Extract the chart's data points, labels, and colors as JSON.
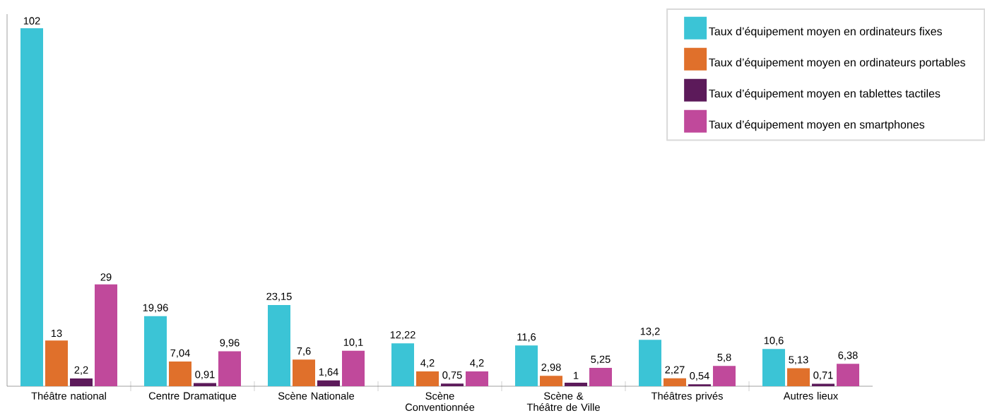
{
  "chart_data": {
    "type": "bar",
    "categories": [
      "Théâtre national",
      "Centre Dramatique",
      "Scène Nationale",
      "Scène Conventionnée",
      "Scène & Théâtre de Ville",
      "Théâtres privés",
      "Autres lieux"
    ],
    "series": [
      {
        "name": "Taux d’équipement moyen en ordinateurs fixes",
        "color": "#3bc4d6",
        "values": [
          102,
          19.96,
          23.15,
          12.22,
          11.6,
          13.2,
          10.6
        ],
        "value_labels": [
          "102",
          "19,96",
          "23,15",
          "12,22",
          "11,6",
          "13,2",
          "10,6"
        ]
      },
      {
        "name": "Taux d’équipement moyen en ordinateurs portables",
        "color": "#e0702b",
        "values": [
          13,
          7.04,
          7.6,
          4.2,
          2.98,
          2.27,
          5.13
        ],
        "value_labels": [
          "13",
          "7,04",
          "7,6",
          "4,2",
          "2,98",
          "2,27",
          "5,13"
        ]
      },
      {
        "name": "Taux d’équipement moyen en tablettes tactiles",
        "color": "#5c1a5a",
        "values": [
          2.2,
          0.91,
          1.64,
          0.75,
          1,
          0.54,
          0.71
        ],
        "value_labels": [
          "2,2",
          "0,91",
          "1,64",
          "0,75",
          "1",
          "0,54",
          "0,71"
        ]
      },
      {
        "name": "Taux d’équipement moyen en smartphones",
        "color": "#c0499b",
        "values": [
          29,
          9.96,
          10.1,
          4.2,
          5.25,
          5.8,
          6.38
        ],
        "value_labels": [
          "29",
          "9,96",
          "10,1",
          "4,2",
          "5,25",
          "5,8",
          "6,38"
        ]
      }
    ],
    "ylim": [
      0,
      106
    ],
    "tick_labels": "x",
    "legend": "top right"
  }
}
